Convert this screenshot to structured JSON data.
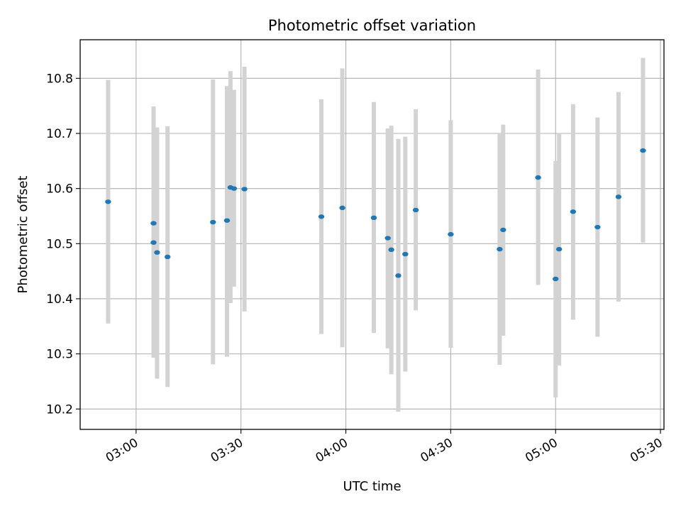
{
  "chart_data": {
    "type": "scatter",
    "title": "Photometric offset variation",
    "xlabel": "UTC time",
    "ylabel": "Photometric offset",
    "x_ticks": [
      "03:00",
      "03:30",
      "04:00",
      "04:30",
      "05:00",
      "05:30"
    ],
    "y_ticks": [
      "10.2",
      "10.3",
      "10.4",
      "10.5",
      "10.6",
      "10.7",
      "10.8"
    ],
    "xlim": [
      "02:44",
      "05:31"
    ],
    "ylim": [
      10.163,
      10.87
    ],
    "grid": true,
    "colors": {
      "point": "#1f77b4",
      "errorbar": "#d3d3d3",
      "grid": "#b0b0b0"
    },
    "series": [
      {
        "points": [
          {
            "x": "02:52",
            "y": 10.576,
            "ylo": 10.355,
            "yhi": 10.797
          },
          {
            "x": "03:05",
            "y": 10.537,
            "ylo": 10.325,
            "yhi": 10.749
          },
          {
            "x": "03:05",
            "y": 10.502,
            "ylo": 10.293,
            "yhi": 10.711
          },
          {
            "x": "03:06",
            "y": 10.484,
            "ylo": 10.255,
            "yhi": 10.711
          },
          {
            "x": "03:09",
            "y": 10.476,
            "ylo": 10.24,
            "yhi": 10.713
          },
          {
            "x": "03:22",
            "y": 10.539,
            "ylo": 10.281,
            "yhi": 10.798
          },
          {
            "x": "03:26",
            "y": 10.542,
            "ylo": 10.295,
            "yhi": 10.786
          },
          {
            "x": "03:27",
            "y": 10.602,
            "ylo": 10.392,
            "yhi": 10.813
          },
          {
            "x": "03:28",
            "y": 10.6,
            "ylo": 10.422,
            "yhi": 10.779
          },
          {
            "x": "03:31",
            "y": 10.599,
            "ylo": 10.377,
            "yhi": 10.821
          },
          {
            "x": "03:53",
            "y": 10.549,
            "ylo": 10.336,
            "yhi": 10.762
          },
          {
            "x": "03:59",
            "y": 10.565,
            "ylo": 10.312,
            "yhi": 10.818
          },
          {
            "x": "04:08",
            "y": 10.547,
            "ylo": 10.338,
            "yhi": 10.757
          },
          {
            "x": "04:12",
            "y": 10.51,
            "ylo": 10.31,
            "yhi": 10.709
          },
          {
            "x": "04:13",
            "y": 10.489,
            "ylo": 10.263,
            "yhi": 10.714
          },
          {
            "x": "04:15",
            "y": 10.442,
            "ylo": 10.195,
            "yhi": 10.69
          },
          {
            "x": "04:17",
            "y": 10.481,
            "ylo": 10.268,
            "yhi": 10.694
          },
          {
            "x": "04:20",
            "y": 10.561,
            "ylo": 10.379,
            "yhi": 10.744
          },
          {
            "x": "04:30",
            "y": 10.517,
            "ylo": 10.311,
            "yhi": 10.724
          },
          {
            "x": "04:44",
            "y": 10.49,
            "ylo": 10.28,
            "yhi": 10.7
          },
          {
            "x": "04:45",
            "y": 10.525,
            "ylo": 10.333,
            "yhi": 10.716
          },
          {
            "x": "04:55",
            "y": 10.62,
            "ylo": 10.425,
            "yhi": 10.816
          },
          {
            "x": "05:00",
            "y": 10.436,
            "ylo": 10.221,
            "yhi": 10.65
          },
          {
            "x": "05:01",
            "y": 10.49,
            "ylo": 10.279,
            "yhi": 10.701
          },
          {
            "x": "05:05",
            "y": 10.558,
            "ylo": 10.362,
            "yhi": 10.753
          },
          {
            "x": "05:12",
            "y": 10.53,
            "ylo": 10.331,
            "yhi": 10.729
          },
          {
            "x": "05:18",
            "y": 10.585,
            "ylo": 10.395,
            "yhi": 10.775
          },
          {
            "x": "05:25",
            "y": 10.669,
            "ylo": 10.502,
            "yhi": 10.837
          }
        ]
      }
    ]
  }
}
